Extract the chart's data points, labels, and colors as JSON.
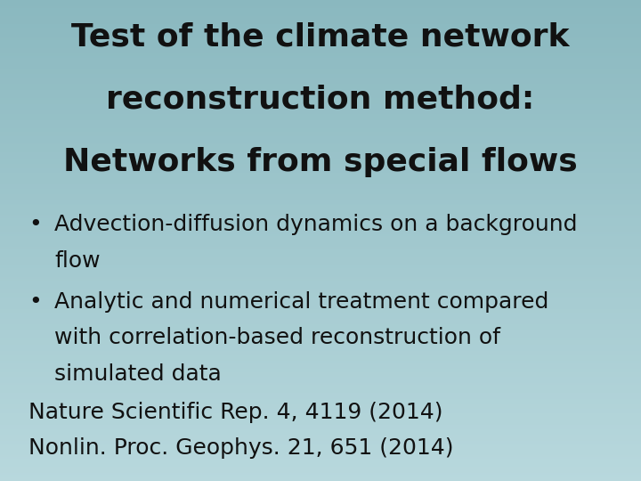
{
  "title_line1": "Test of the climate network",
  "title_line2": "reconstruction method:",
  "title_line3": "Networks from special flows",
  "bullet1_line1": "Advection-diffusion dynamics on a background",
  "bullet1_line2": "flow",
  "bullet2_line1": "Analytic and numerical treatment compared",
  "bullet2_line2": "with correlation-based reconstruction of",
  "bullet2_line3": "simulated data",
  "citation1": "Nature Scientific Rep. 4, 4119 (2014)",
  "citation2": "Nonlin. Proc. Geophys. 21, 651 (2014)",
  "bg_color_top": "#8ab8bf",
  "bg_color_bottom": "#b0d0d6",
  "text_color": "#111111",
  "title_fontsize": 26,
  "body_fontsize": 18,
  "bullet_char": "•"
}
